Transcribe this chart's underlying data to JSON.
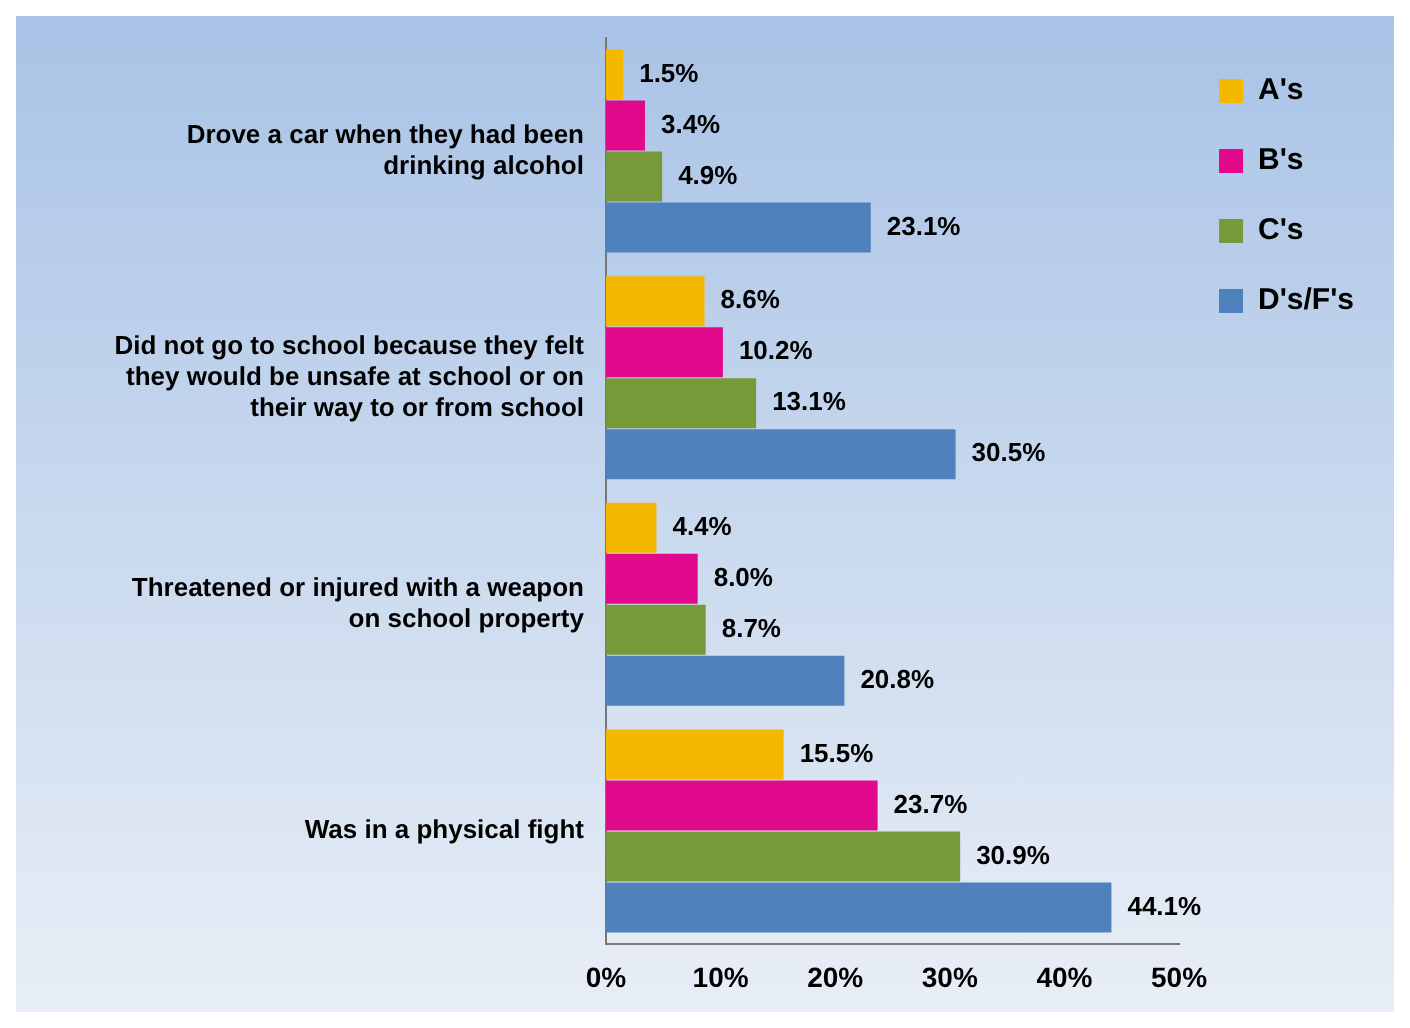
{
  "chart_data": {
    "type": "bar",
    "orientation": "horizontal",
    "categories": [
      "Drove a car when they had been drinking alcohol",
      "Did not go to school because they felt they would be unsafe at school or on their way to or from school",
      "Threatened or injured with a weapon on school property",
      "Was in a physical fight"
    ],
    "series": [
      {
        "name": "A's",
        "color": "#f5b800",
        "values": [
          1.5,
          8.6,
          4.4,
          15.5
        ],
        "value_labels": [
          "1.5%",
          "8.6%",
          "4.4%",
          "15.5%"
        ]
      },
      {
        "name": "B's",
        "color": "#e0098c",
        "values": [
          3.4,
          10.2,
          8.0,
          23.7
        ],
        "value_labels": [
          "3.4%",
          "10.2%",
          "8.0%",
          "23.7%"
        ]
      },
      {
        "name": "C's",
        "color": "#77993a",
        "values": [
          4.9,
          13.1,
          8.7,
          30.9
        ],
        "value_labels": [
          "4.9%",
          "13.1%",
          "8.7%",
          "30.9%"
        ]
      },
      {
        "name": "D's/F's",
        "color": "#4f81bd",
        "values": [
          23.1,
          30.5,
          20.8,
          44.1
        ],
        "value_labels": [
          "23.1%",
          "30.5%",
          "20.8%",
          "44.1%"
        ]
      }
    ],
    "xlim": [
      0,
      50
    ],
    "xticks": [
      {
        "value": 0,
        "label": "0%"
      },
      {
        "value": 10,
        "label": "10%"
      },
      {
        "value": 20,
        "label": "20%"
      },
      {
        "value": 30,
        "label": "30%"
      },
      {
        "value": 40,
        "label": "40%"
      },
      {
        "value": 50,
        "label": "50%"
      }
    ],
    "grid": false,
    "legend": "top right"
  }
}
